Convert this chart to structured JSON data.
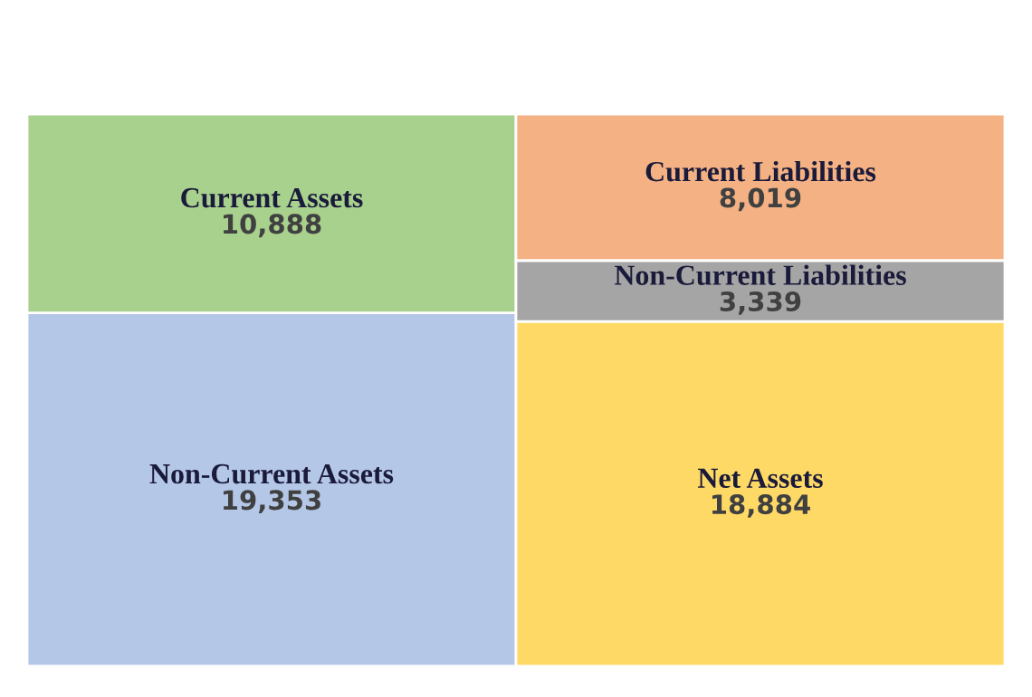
{
  "chart_data": {
    "type": "bar",
    "stacked": true,
    "categories": [
      null,
      null
    ],
    "series": [
      {
        "name": "Non-Current Assets",
        "color": "#b4c7e7",
        "values": [
          19353,
          null
        ],
        "value_labels": [
          "19,353",
          null
        ]
      },
      {
        "name": "Current Assets",
        "color": "#a9d18e",
        "values": [
          10888,
          null
        ],
        "value_labels": [
          "10,888",
          null
        ]
      },
      {
        "name": "Net Assets",
        "color": "#ffd966",
        "values": [
          null,
          18884
        ],
        "value_labels": [
          null,
          "18,884"
        ]
      },
      {
        "name": "Non-Current Liabilities",
        "color": "#a5a5a5",
        "values": [
          null,
          3339
        ],
        "value_labels": [
          null,
          "3,339"
        ]
      },
      {
        "name": "Current Liabilities",
        "color": "#f4b183",
        "values": [
          null,
          8019
        ],
        "value_labels": [
          null,
          "8,019"
        ]
      }
    ]
  }
}
